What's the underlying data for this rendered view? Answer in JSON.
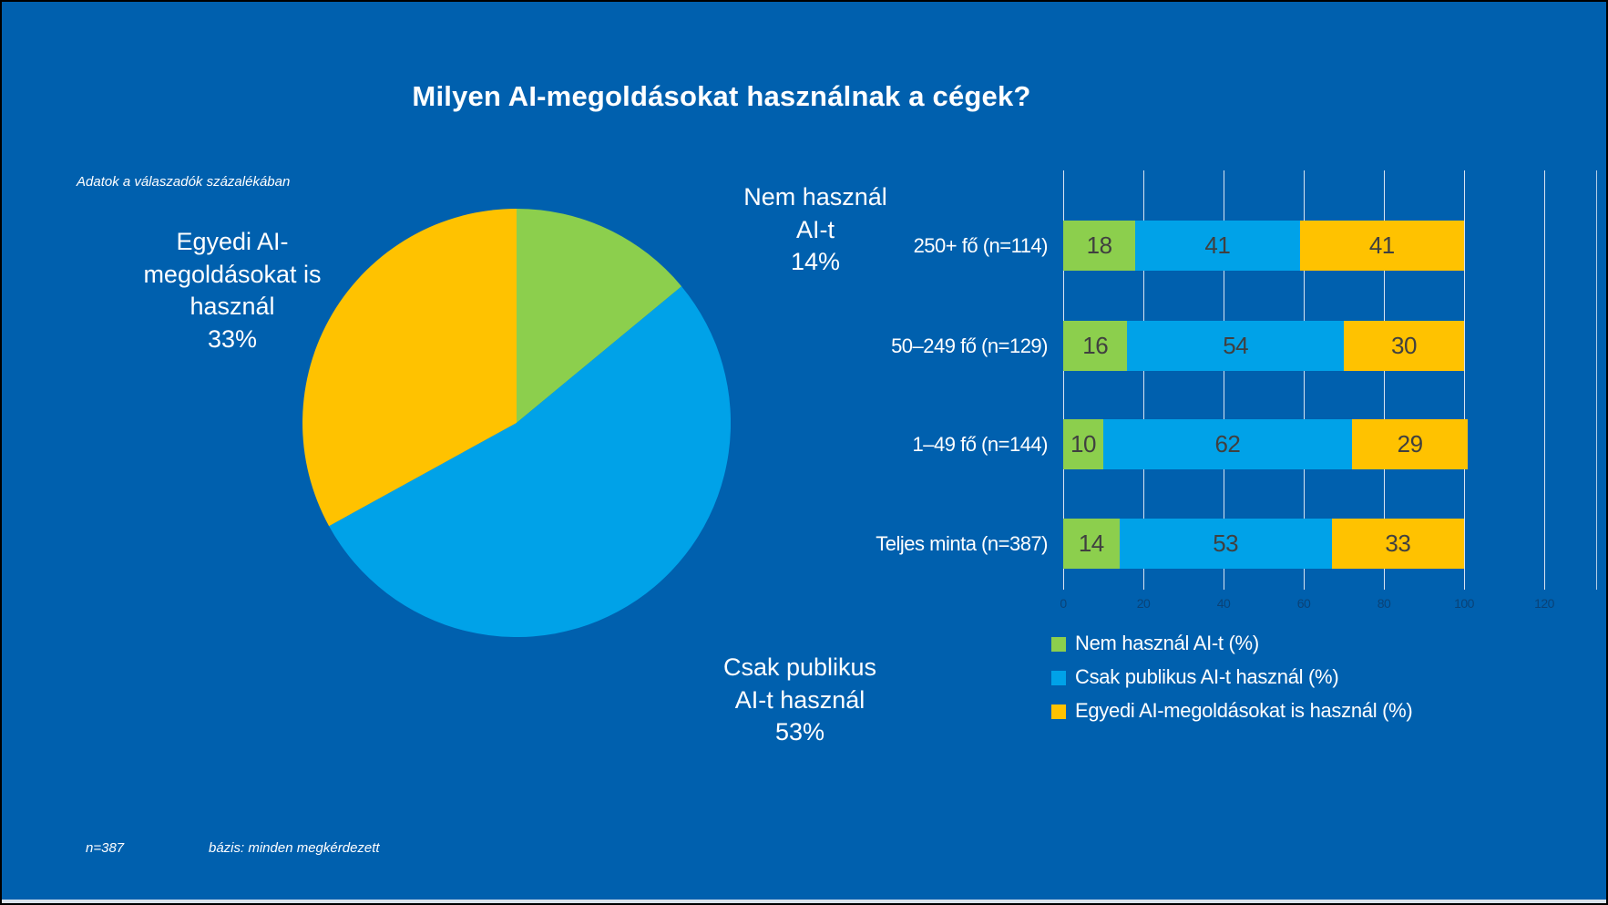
{
  "slide": {
    "title": "Milyen AI-megoldásokat használnak a cégek?",
    "note": "Adatok a válaszadók százalékában",
    "footer_n": "n=387",
    "footer_basis": "bázis: minden megkérdezett"
  },
  "colors": {
    "background": "#0060AE",
    "green": "#8CCF4D",
    "blue": "#00A2E8",
    "orange": "#FFC200",
    "value_label": "#404040"
  },
  "pie_callouts": {
    "none": "Nem használ\nAI-t\n14%",
    "public": "Csak publikus\nAI-t használ\n53%",
    "custom": "Egyedi AI-\nmegoldásokat is\nhasznál\n33%"
  },
  "chart_data": [
    {
      "type": "pie",
      "title": "Milyen AI-megoldásokat használnak a cégek?",
      "start_angle_deg": 0,
      "direction": "clockwise",
      "slices": [
        {
          "key": "none",
          "label": "Nem használ AI-t",
          "value": 14,
          "color_key": "green"
        },
        {
          "key": "public",
          "label": "Csak publikus AI-t használ",
          "value": 53,
          "color_key": "blue"
        },
        {
          "key": "custom",
          "label": "Egyedi AI-megoldásokat is használ",
          "value": 33,
          "color_key": "orange"
        }
      ]
    },
    {
      "type": "bar",
      "orientation": "horizontal-stacked",
      "categories": [
        "250+ fő (n=114)",
        "50–249 fő (n=129)",
        "1–49 fő (n=144)",
        "Teljes minta (n=387)"
      ],
      "series": [
        {
          "key": "none",
          "name": "Nem használ AI-t (%)",
          "color_key": "green",
          "values": [
            18,
            16,
            10,
            14
          ]
        },
        {
          "key": "public",
          "name": "Csak publikus AI-t használ (%)",
          "color_key": "blue",
          "values": [
            41,
            54,
            62,
            53
          ]
        },
        {
          "key": "custom",
          "name": "Egyedi AI-megoldásokat is használ (%)",
          "color_key": "orange",
          "values": [
            41,
            30,
            29,
            33
          ]
        }
      ],
      "xlim": [
        0,
        120
      ],
      "xticks": [
        0,
        20,
        40,
        60,
        80,
        100,
        120
      ],
      "grid": true,
      "legend_position": "bottom"
    }
  ]
}
